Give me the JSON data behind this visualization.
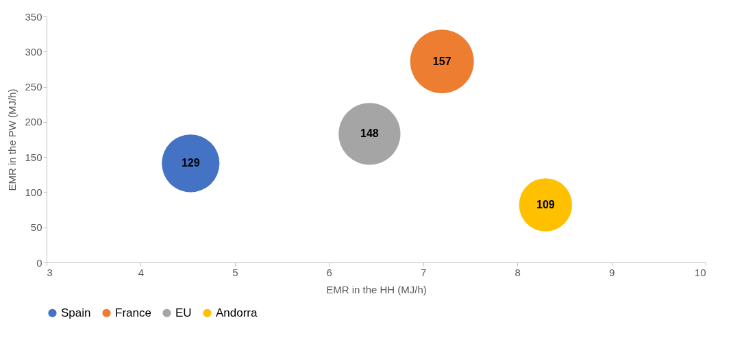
{
  "chart_data": {
    "type": "bubble",
    "xlabel": "EMR in the HH (MJ/h)",
    "ylabel": "EMR in the PW (MJ/h)",
    "xlim": [
      3,
      10
    ],
    "xticks": [
      3,
      4,
      5,
      6,
      7,
      8,
      9,
      10
    ],
    "ylim": [
      0,
      350
    ],
    "yticks": [
      0,
      50,
      100,
      150,
      200,
      250,
      300,
      350
    ],
    "grid": false,
    "legend": "bottom",
    "series": [
      {
        "name": "Spain",
        "color": "#4472c4",
        "x": [
          4.53
        ],
        "values": [
          141
        ],
        "sizes": [
          129
        ],
        "value_labels": [
          "129"
        ]
      },
      {
        "name": "France",
        "color": "#ed7d31",
        "x": [
          7.2
        ],
        "values": [
          286
        ],
        "sizes": [
          157
        ],
        "value_labels": [
          "157"
        ]
      },
      {
        "name": "EU",
        "color": "#a5a5a5",
        "x": [
          6.43
        ],
        "values": [
          183
        ],
        "sizes": [
          148
        ],
        "value_labels": [
          "148"
        ]
      },
      {
        "name": "Andorra",
        "color": "#ffc000",
        "x": [
          8.3
        ],
        "values": [
          82
        ],
        "sizes": [
          109
        ],
        "value_labels": [
          "109"
        ]
      }
    ]
  }
}
